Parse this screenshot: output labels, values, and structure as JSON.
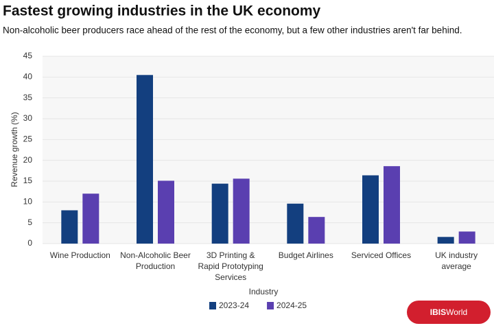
{
  "chart_data": {
    "type": "bar",
    "title": "Fastest growing industries in the UK economy",
    "subtitle": "Non-alcoholic beer producers race ahead of the rest of the economy, but a few other industries aren't far behind.",
    "x_label": "Industry",
    "y_label": "Revenue growth (%)",
    "categories": [
      [
        "Wine Production"
      ],
      [
        "Non-Alcoholic Beer",
        "Production"
      ],
      [
        "3D Printing &",
        "Rapid Prototyping",
        "Services"
      ],
      [
        "Budget Airlines"
      ],
      [
        "Serviced Offices"
      ],
      [
        "UK industry",
        "average"
      ]
    ],
    "series": [
      {
        "name": "2023-24",
        "color": "#133f7f",
        "values": [
          8,
          40.5,
          14.4,
          9.6,
          16.4,
          1.6
        ]
      },
      {
        "name": "2024-25",
        "color": "#5a3fb0",
        "values": [
          12,
          15.1,
          15.6,
          6.4,
          18.6,
          2.9
        ]
      }
    ],
    "ylim": [
      0,
      45
    ],
    "yticks": [
      0,
      5,
      10,
      15,
      20,
      25,
      30,
      35,
      40,
      45
    ],
    "grid": true,
    "legend": "bottom"
  },
  "logo": {
    "parts": [
      "IBIS",
      "World"
    ]
  }
}
